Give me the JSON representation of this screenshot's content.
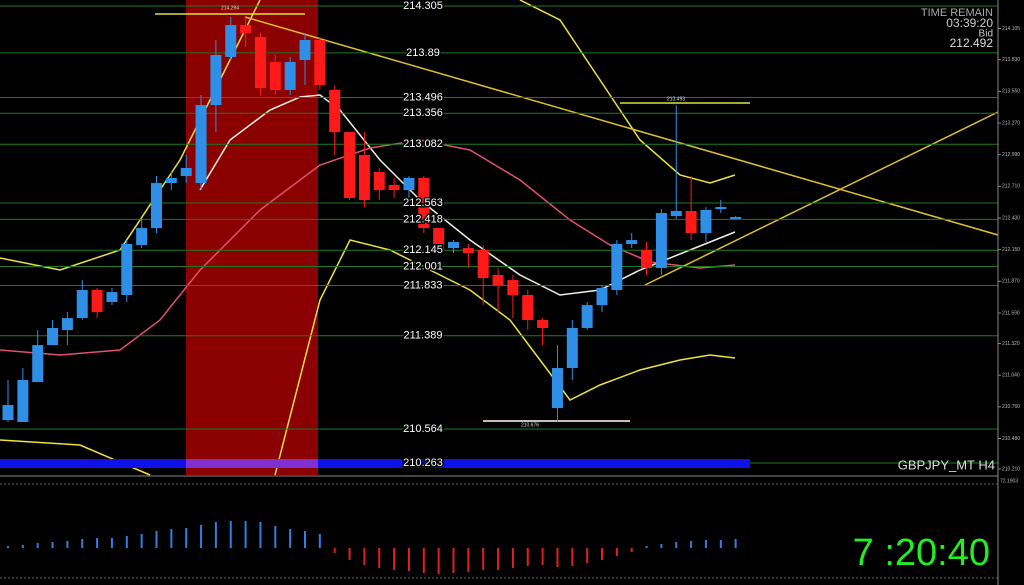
{
  "info": {
    "time_label": "TIME REMAIN",
    "time": "03:39:20",
    "bid_label": "Bid",
    "bid": 212.492,
    "symbol": "GBPJPY_MT H4",
    "clock": "7 :20:40"
  },
  "price_chart": {
    "type": "candlestick",
    "ylim": [
      210.157,
      214.358
    ],
    "up_color": "#2f8fe6",
    "down_color": "#ff1a1a",
    "yticks": [
      214.105,
      {
        "value": 213.83,
        "label": "213.830"
      },
      {
        "value": 213.55,
        "label": "213.550"
      },
      {
        "value": 213.27,
        "label": "213.270"
      },
      {
        "value": 212.99,
        "label": "212.990"
      },
      {
        "value": 212.71,
        "label": "212.710"
      },
      {
        "value": 212.43,
        "label": "212.430"
      },
      {
        "value": 212.15,
        "label": "212.150"
      },
      {
        "value": 211.87,
        "label": "211.870"
      },
      {
        "value": 211.59,
        "label": "211.590"
      },
      {
        "value": 211.32,
        "label": "211.320"
      },
      {
        "value": 211.04,
        "label": "211.040"
      },
      {
        "value": 210.76,
        "label": "210.760"
      },
      {
        "value": 210.48,
        "label": "210.480"
      },
      {
        "value": 210.21,
        "label": "210.210"
      }
    ],
    "open": [
      210.643,
      210.626,
      210.979,
      211.306,
      211.439,
      211.545,
      211.793,
      211.687,
      211.749,
      212.191,
      212.341,
      212.739,
      212.801,
      212.739,
      213.429,
      213.854,
      214.137,
      214.031,
      213.81,
      213.562,
      213.827,
      214.004,
      213.562,
      213.19,
      212.987,
      212.837,
      212.722,
      212.677,
      212.784,
      212.341,
      212.164,
      212.164,
      212.147,
      211.926,
      211.881,
      211.749,
      211.528,
      210.749,
      211.103,
      211.457,
      211.66,
      211.793,
      212.2,
      212.147,
      211.988,
      212.447,
      212.492,
      212.297,
      212.509,
      212.421
    ],
    "high": [
      210.997,
      211.103,
      211.439,
      211.528,
      211.598,
      211.881,
      211.811,
      211.811,
      212.235,
      212.421,
      212.801,
      212.837,
      212.987,
      213.518,
      214.004,
      214.208,
      214.208,
      214.066,
      213.872,
      213.854,
      214.066,
      214.031,
      213.606,
      213.19,
      213.19,
      212.872,
      212.784,
      212.801,
      212.801,
      212.341,
      212.235,
      212.2,
      212.191,
      211.988,
      211.926,
      211.793,
      211.545,
      211.306,
      211.528,
      211.687,
      211.837,
      212.235,
      212.297,
      212.218,
      212.509,
      213.429,
      212.801,
      212.527,
      212.589,
      212.447
    ],
    "low": [
      210.626,
      210.626,
      210.979,
      211.306,
      211.306,
      211.528,
      211.545,
      211.66,
      211.687,
      212.164,
      212.297,
      212.677,
      212.739,
      212.677,
      213.19,
      213.827,
      213.942,
      213.518,
      213.518,
      213.518,
      213.606,
      213.562,
      212.987,
      212.589,
      212.527,
      212.589,
      212.607,
      212.607,
      212.297,
      212.12,
      212.12,
      211.988,
      211.66,
      211.598,
      211.545,
      211.439,
      211.306,
      210.626,
      210.997,
      211.439,
      211.598,
      211.749,
      212.164,
      211.926,
      211.926,
      212.421,
      212.235,
      212.218,
      212.474,
      212.421
    ],
    "close": [
      210.776,
      210.997,
      211.306,
      211.457,
      211.545,
      211.793,
      211.598,
      211.775,
      212.2,
      212.341,
      212.739,
      212.784,
      212.872,
      213.429,
      213.872,
      214.137,
      214.066,
      213.58,
      213.562,
      213.81,
      214.004,
      213.606,
      213.19,
      212.607,
      212.589,
      212.677,
      212.677,
      212.784,
      212.341,
      212.147,
      212.218,
      212.12,
      211.899,
      211.837,
      211.749,
      211.528,
      211.457,
      211.103,
      211.457,
      211.66,
      211.811,
      212.2,
      212.235,
      211.988,
      212.474,
      212.492,
      212.297,
      212.501,
      212.527,
      212.439
    ],
    "levels": [
      214.305,
      213.89,
      213.496,
      213.356,
      213.082,
      212.563,
      212.418,
      212.145,
      212.001,
      211.833,
      211.389,
      210.564,
      210.263
    ],
    "peak_label": "214.294",
    "high_label": "213.493",
    "low_label": "210.676"
  },
  "oscillator": {
    "type": "histogram",
    "ylim": [
      -0.37,
      0.7
    ],
    "axis_label": "72.1903",
    "values": [
      0.02,
      0.03,
      0.05,
      0.06,
      0.07,
      0.09,
      0.1,
      0.1,
      0.12,
      0.14,
      0.17,
      0.19,
      0.2,
      0.23,
      0.26,
      0.27,
      0.27,
      0.26,
      0.22,
      0.19,
      0.17,
      0.14,
      -0.05,
      -0.12,
      -0.17,
      -0.2,
      -0.22,
      -0.23,
      -0.25,
      -0.26,
      -0.25,
      -0.24,
      -0.22,
      -0.22,
      -0.2,
      -0.18,
      -0.17,
      -0.19,
      -0.18,
      -0.15,
      -0.12,
      -0.08,
      -0.04,
      0.02,
      0.04,
      0.06,
      0.07,
      0.08,
      0.08,
      0.09
    ]
  }
}
